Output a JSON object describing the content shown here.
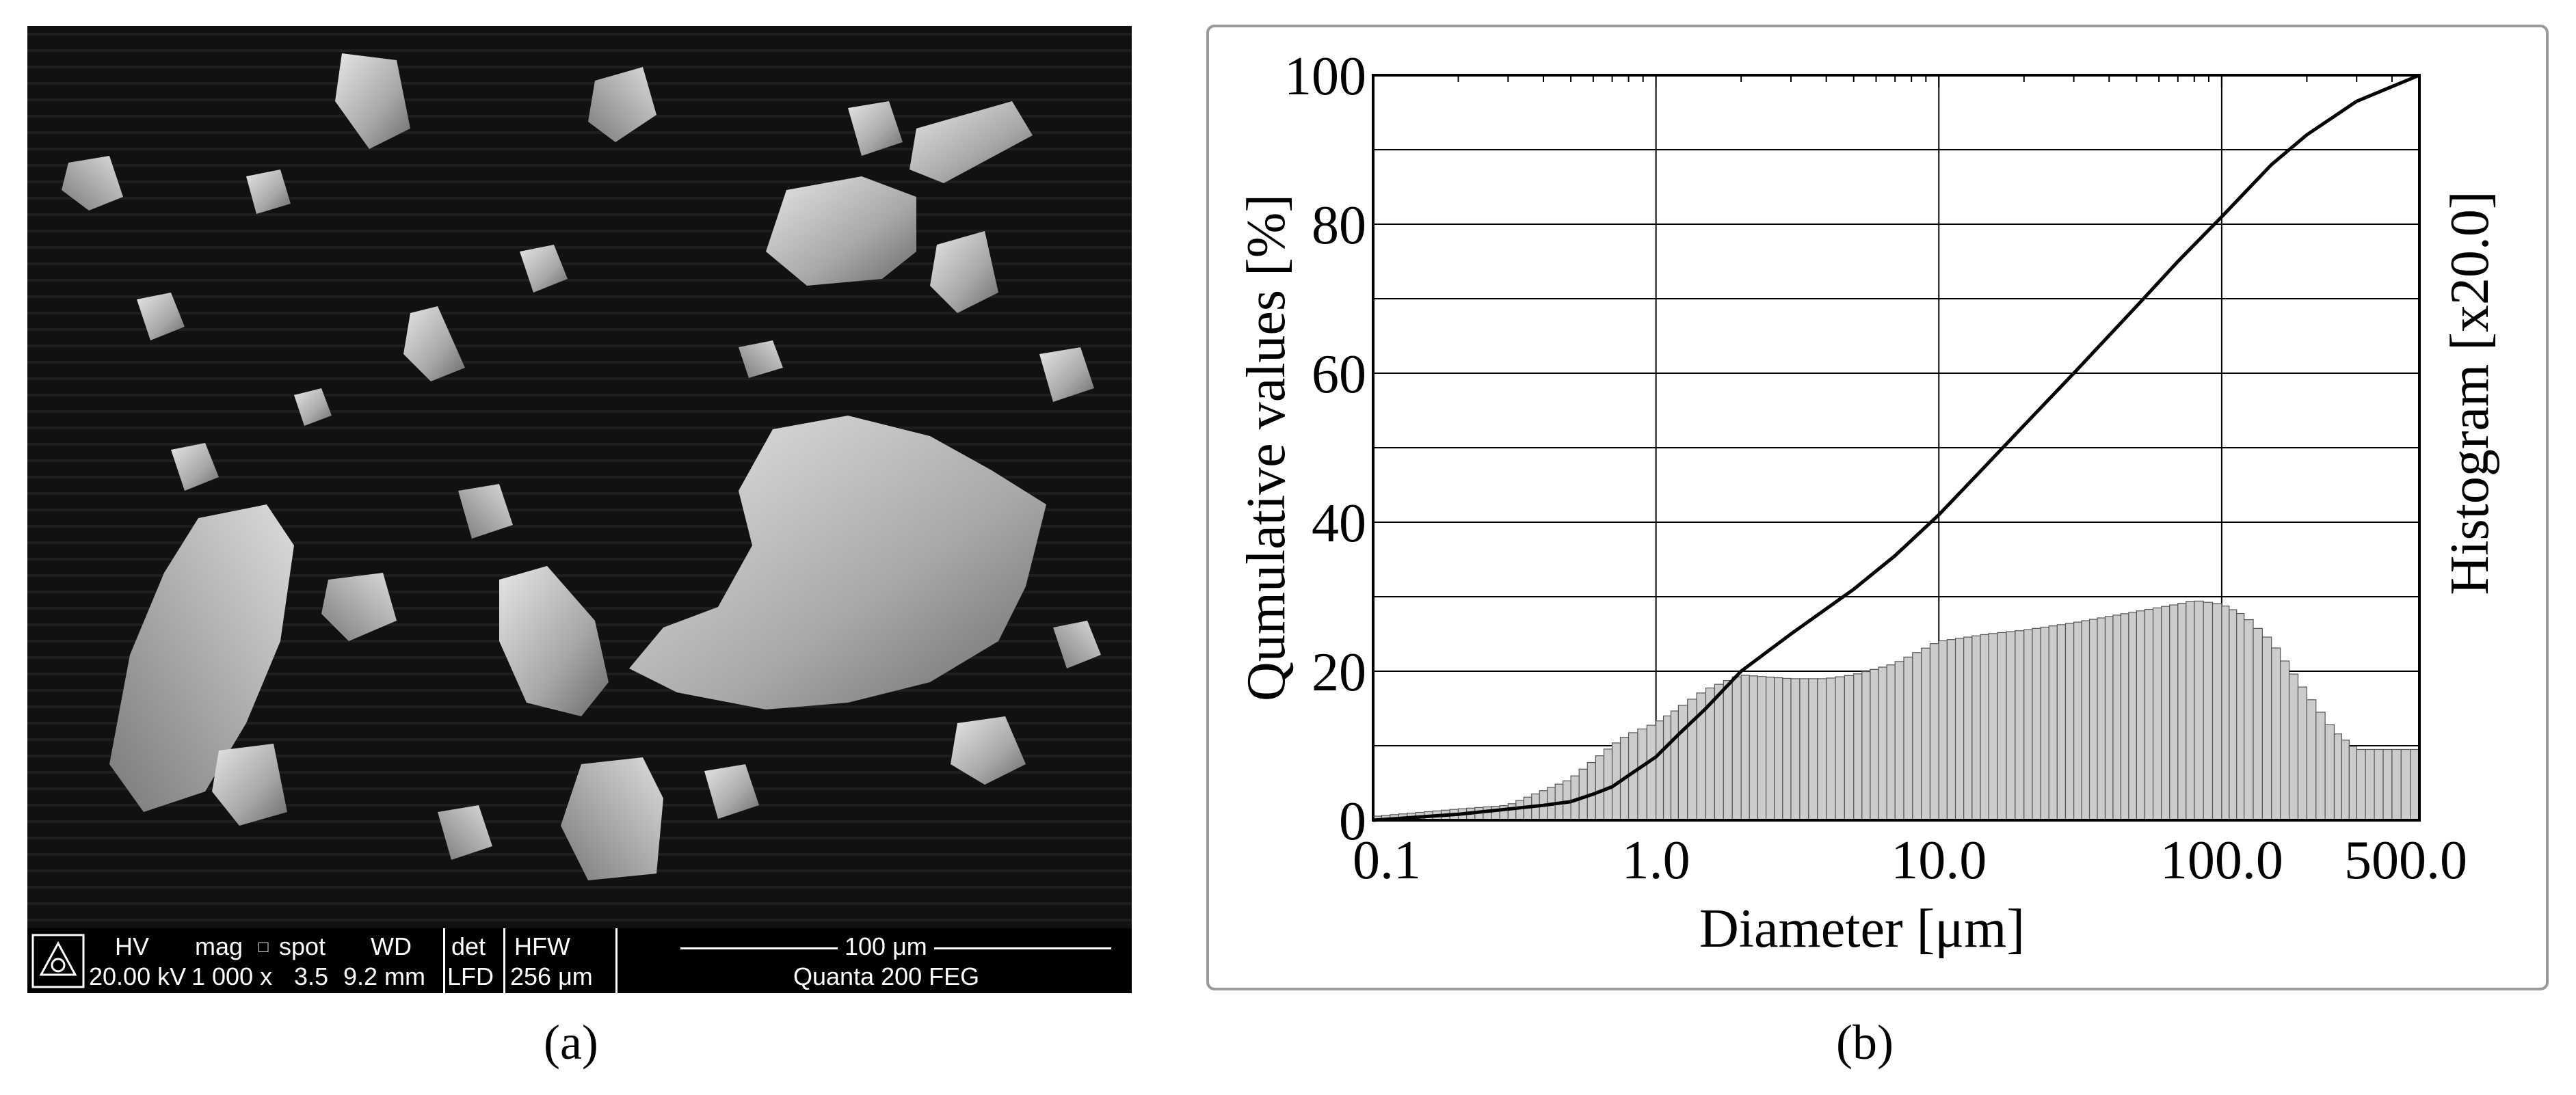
{
  "panel_a": {
    "caption": "(a)",
    "databar": {
      "headers": [
        "HV",
        "mag",
        "spot",
        "WD",
        "det",
        "HFW"
      ],
      "values": [
        "20.00 kV",
        "1 000 x",
        "3.5",
        "9.2 mm",
        "LFD",
        "256 μm"
      ],
      "scale_text": "100 μm",
      "model": "Quanta 200 FEG"
    }
  },
  "panel_b": {
    "caption": "(b)"
  },
  "chart_data": {
    "type": "line",
    "x_scale": "log",
    "xlim": [
      0.1,
      500.0
    ],
    "ylim": [
      0,
      100
    ],
    "x_ticks": [
      "0.1",
      "1.0",
      "10.0",
      "100.0",
      "500.0"
    ],
    "y_ticks": [
      "0",
      "20",
      "40",
      "60",
      "80",
      "100"
    ],
    "xlabel": "Diameter [μm]",
    "ylabel": "Qumulative values [%]",
    "y2label": "Histogram [x20.0]",
    "grid": true,
    "series": [
      {
        "kind": "cumulative-line",
        "color": "#000000",
        "x": [
          0.1,
          0.2,
          0.3,
          0.4,
          0.5,
          0.6,
          0.7,
          0.8,
          1.0,
          1.2,
          1.5,
          2.0,
          3.0,
          5.0,
          7.0,
          10.0,
          15.0,
          20.0,
          30.0,
          50.0,
          70.0,
          100.0,
          150.0,
          200.0,
          300.0,
          500.0
        ],
        "y": [
          0.0,
          0.8,
          1.5,
          2.0,
          2.5,
          3.5,
          4.5,
          6.0,
          8.5,
          11.5,
          15.0,
          20.0,
          25.0,
          31.0,
          35.5,
          41.0,
          48.0,
          53.0,
          60.0,
          69.0,
          75.0,
          81.0,
          88.0,
          92.0,
          96.5,
          100.0
        ]
      },
      {
        "kind": "histogram",
        "color": "#cccccc",
        "x": [
          0.1,
          0.2,
          0.3,
          0.5,
          0.7,
          0.8,
          1.0,
          1.2,
          1.5,
          2.0,
          3.0,
          4.0,
          5.0,
          7.0,
          10.0,
          15.0,
          20.0,
          30.0,
          50.0,
          70.0,
          80.0,
          100.0,
          120.0,
          150.0,
          200.0,
          250.0,
          300.0,
          400.0,
          500.0
        ],
        "y": [
          0.5,
          1.5,
          2.0,
          5.5,
          10.0,
          11.5,
          13.0,
          15.0,
          17.5,
          19.5,
          19.0,
          19.0,
          19.5,
          21.0,
          24.0,
          25.0,
          25.5,
          26.5,
          28.0,
          29.0,
          29.5,
          29.0,
          27.5,
          24.0,
          17.0,
          12.0,
          9.5,
          9.5,
          9.5
        ]
      }
    ]
  }
}
